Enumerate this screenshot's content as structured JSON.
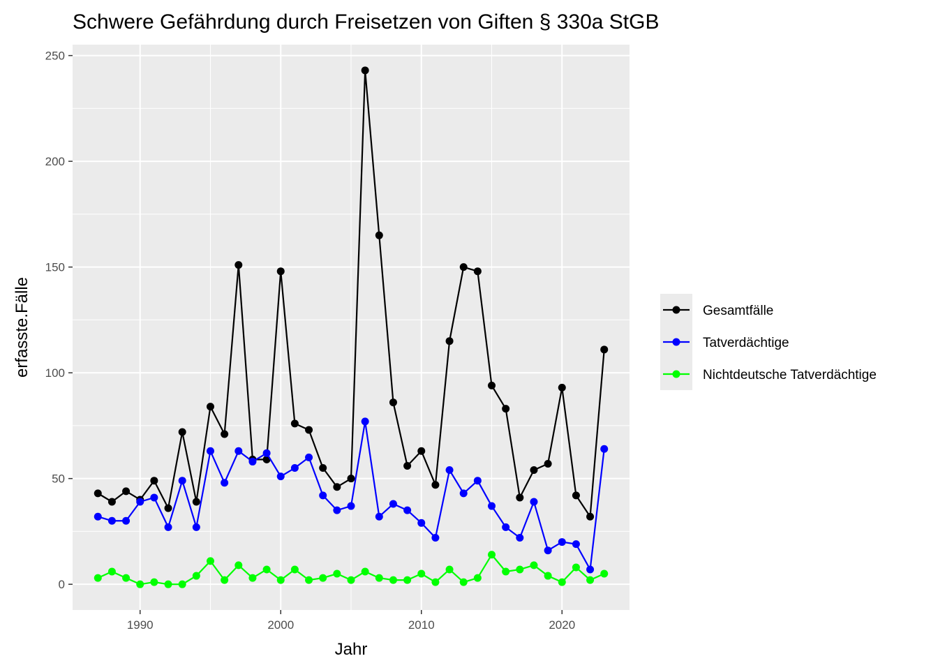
{
  "chart_data": {
    "type": "line",
    "title": "Schwere Gefährdung durch Freisetzen von Giften § 330a StGB",
    "xlabel": "Jahr",
    "ylabel": "erfasste.Fälle",
    "xlim": [
      1985.2,
      2024.8
    ],
    "ylim": [
      -12.15,
      255.15
    ],
    "x_ticks": [
      1990,
      2000,
      2010,
      2020
    ],
    "y_ticks": [
      0,
      50,
      100,
      150,
      200,
      250
    ],
    "grid": true,
    "legend_position": "right",
    "x": [
      1987,
      1988,
      1989,
      1990,
      1991,
      1992,
      1993,
      1994,
      1995,
      1996,
      1997,
      1998,
      1999,
      2000,
      2001,
      2002,
      2003,
      2004,
      2005,
      2006,
      2007,
      2008,
      2009,
      2010,
      2011,
      2012,
      2013,
      2014,
      2015,
      2016,
      2017,
      2018,
      2019,
      2020,
      2021,
      2022,
      2023
    ],
    "series": [
      {
        "name": "Gesamtfälle",
        "color": "#000000",
        "values": [
          43,
          39,
          44,
          40,
          49,
          36,
          72,
          39,
          84,
          71,
          151,
          59,
          59,
          148,
          76,
          73,
          55,
          46,
          50,
          243,
          165,
          86,
          56,
          63,
          47,
          115,
          150,
          148,
          94,
          83,
          41,
          54,
          57,
          93,
          42,
          32,
          111
        ]
      },
      {
        "name": "Tatverdächtige",
        "color": "#0000ff",
        "values": [
          32,
          30,
          30,
          39,
          41,
          27,
          49,
          27,
          63,
          48,
          63,
          58,
          62,
          51,
          55,
          60,
          42,
          35,
          37,
          77,
          32,
          38,
          35,
          29,
          22,
          54,
          43,
          49,
          37,
          27,
          22,
          39,
          16,
          20,
          19,
          7,
          64
        ]
      },
      {
        "name": "Nichtdeutsche Tatverdächtige",
        "color": "#00ff00",
        "values": [
          3,
          6,
          3,
          0,
          1,
          0,
          0,
          4,
          11,
          2,
          9,
          3,
          7,
          2,
          7,
          2,
          3,
          5,
          2,
          6,
          3,
          2,
          2,
          5,
          1,
          7,
          1,
          3,
          14,
          6,
          7,
          9,
          4,
          1,
          8,
          2,
          5
        ]
      }
    ]
  }
}
